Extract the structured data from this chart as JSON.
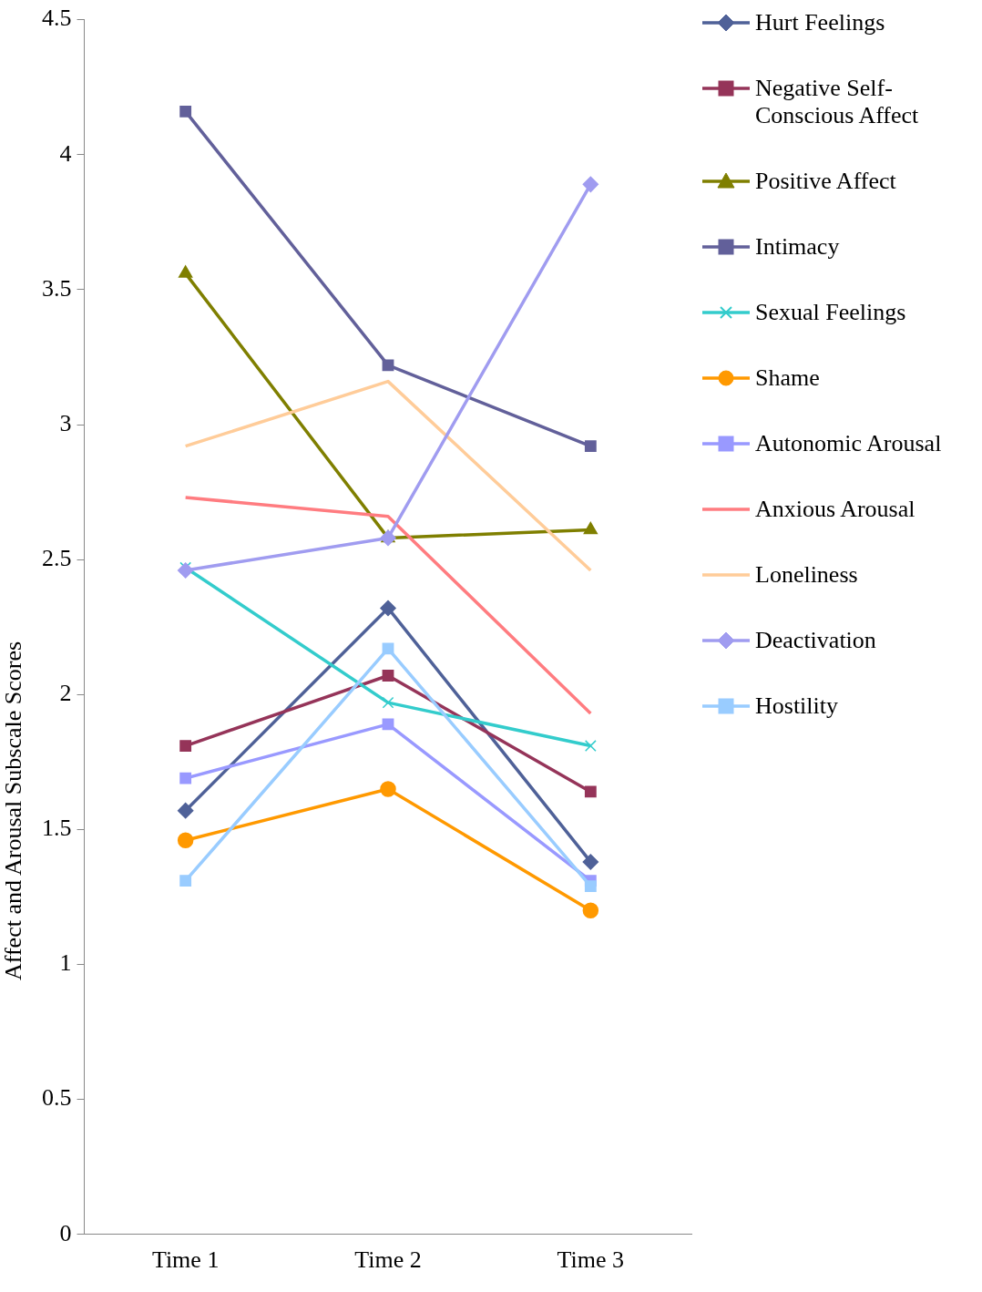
{
  "chart_data": {
    "type": "line",
    "ylabel": "Affect and Arousal Subscale Scores",
    "categories": [
      "Time 1",
      "Time 2",
      "Time 3"
    ],
    "ylim": [
      0,
      4.5
    ],
    "yticks": [
      0,
      0.5,
      1,
      1.5,
      2,
      2.5,
      3,
      3.5,
      4,
      4.5
    ],
    "grid": false,
    "legend": "right",
    "series": [
      {
        "name": "Hurt Feelings",
        "color": "#4f6198",
        "marker": "diamond",
        "values": [
          1.57,
          2.32,
          1.38
        ]
      },
      {
        "name": "Negative Self-Conscious Affect",
        "color": "#953459",
        "marker": "square",
        "values": [
          1.81,
          2.07,
          1.64
        ]
      },
      {
        "name": "Positive Affect",
        "color": "#7f7f00",
        "marker": "triangle",
        "values": [
          3.56,
          2.58,
          2.61
        ]
      },
      {
        "name": "Intimacy",
        "color": "#62609a",
        "marker": "square",
        "values": [
          4.16,
          3.22,
          2.92
        ]
      },
      {
        "name": "Sexual Feelings",
        "color": "#33cccc",
        "marker": "cross",
        "values": [
          2.47,
          1.97,
          1.81
        ]
      },
      {
        "name": "Shame",
        "color": "#ff9900",
        "marker": "circle",
        "values": [
          1.46,
          1.65,
          1.2
        ]
      },
      {
        "name": "Autonomic Arousal",
        "color": "#9999ff",
        "marker": "square",
        "values": [
          1.69,
          1.89,
          1.31
        ]
      },
      {
        "name": "Anxious Arousal",
        "color": "#ff7c80",
        "marker": "none",
        "values": [
          2.73,
          2.66,
          1.93
        ]
      },
      {
        "name": "Loneliness",
        "color": "#ffcc99",
        "marker": "none",
        "values": [
          2.92,
          3.16,
          2.46
        ]
      },
      {
        "name": "Deactivation",
        "color": "#a09cf0",
        "marker": "diamond",
        "values": [
          2.46,
          2.58,
          3.89
        ]
      },
      {
        "name": "Hostility",
        "color": "#99ccff",
        "marker": "square",
        "values": [
          1.31,
          2.17,
          1.29
        ]
      }
    ]
  }
}
